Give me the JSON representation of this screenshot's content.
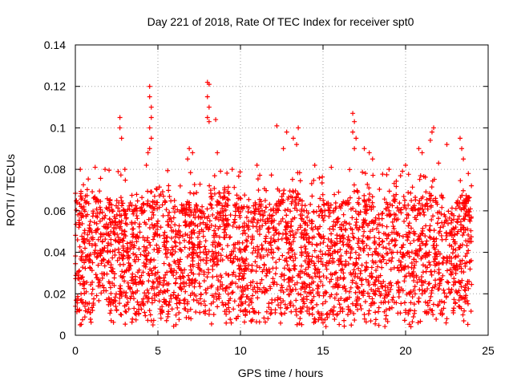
{
  "chart_data": {
    "type": "scatter",
    "title": "Day 221 of 2018, Rate Of TEC Index for receiver spt0",
    "xlabel": "GPS time / hours",
    "ylabel": "ROTI / TECUs",
    "xlim": [
      0,
      25
    ],
    "ylim": [
      0,
      0.14
    ],
    "xticks": [
      0,
      5,
      10,
      15,
      20,
      25
    ],
    "yticks": [
      0,
      0.02,
      0.04,
      0.06,
      0.08,
      0.1,
      0.12,
      0.14
    ],
    "xtick_labels": [
      "0",
      "5",
      "10",
      "15",
      "20",
      "25"
    ],
    "ytick_labels": [
      "0",
      "0.02",
      "0.04",
      "0.06",
      "0.08",
      "0.1",
      "0.12",
      "0.14"
    ],
    "grid": true,
    "marker": "plus",
    "color": "#ff0000",
    "x_data_range": [
      0,
      24
    ],
    "typical_band": [
      0.01,
      0.06
    ],
    "series": [
      {
        "name": "ROTI",
        "points": [
          [
            2.7,
            0.105
          ],
          [
            2.7,
            0.1
          ],
          [
            2.8,
            0.095
          ],
          [
            4.5,
            0.12
          ],
          [
            4.5,
            0.115
          ],
          [
            4.6,
            0.11
          ],
          [
            4.6,
            0.105
          ],
          [
            4.5,
            0.1
          ],
          [
            4.6,
            0.095
          ],
          [
            4.5,
            0.09
          ],
          [
            4.4,
            0.088
          ],
          [
            4.3,
            0.082
          ],
          [
            8.0,
            0.122
          ],
          [
            8.1,
            0.121
          ],
          [
            8.0,
            0.115
          ],
          [
            8.1,
            0.11
          ],
          [
            8.0,
            0.105
          ],
          [
            8.1,
            0.103
          ],
          [
            8.5,
            0.104
          ],
          [
            8.6,
            0.088
          ],
          [
            6.9,
            0.09
          ],
          [
            7.1,
            0.088
          ],
          [
            6.8,
            0.085
          ],
          [
            12.2,
            0.101
          ],
          [
            12.8,
            0.098
          ],
          [
            13.2,
            0.095
          ],
          [
            13.5,
            0.1
          ],
          [
            13.4,
            0.092
          ],
          [
            12.6,
            0.09
          ],
          [
            16.8,
            0.107
          ],
          [
            16.9,
            0.103
          ],
          [
            16.8,
            0.098
          ],
          [
            17.0,
            0.095
          ],
          [
            16.9,
            0.09
          ],
          [
            17.5,
            0.09
          ],
          [
            17.8,
            0.088
          ],
          [
            18.0,
            0.085
          ],
          [
            20.8,
            0.09
          ],
          [
            21.0,
            0.088
          ],
          [
            21.6,
            0.098
          ],
          [
            21.7,
            0.1
          ],
          [
            21.5,
            0.094
          ],
          [
            22.5,
            0.092
          ],
          [
            23.3,
            0.095
          ],
          [
            23.4,
            0.09
          ],
          [
            23.5,
            0.085
          ],
          [
            0.3,
            0.08
          ],
          [
            1.2,
            0.081
          ],
          [
            1.8,
            0.08
          ],
          [
            3.0,
            0.08
          ],
          [
            9.5,
            0.08
          ],
          [
            11.0,
            0.082
          ],
          [
            14.5,
            0.082
          ],
          [
            15.5,
            0.081
          ],
          [
            19.0,
            0.08
          ],
          [
            20.0,
            0.082
          ],
          [
            22.0,
            0.083
          ],
          [
            23.8,
            0.078
          ],
          [
            0.1,
            0.03
          ],
          [
            0.5,
            0.045
          ],
          [
            1.0,
            0.02
          ],
          [
            1.5,
            0.055
          ],
          [
            2.0,
            0.035
          ],
          [
            2.5,
            0.012
          ],
          [
            3.0,
            0.05
          ],
          [
            3.5,
            0.025
          ],
          [
            4.0,
            0.06
          ],
          [
            4.7,
            0.005
          ],
          [
            5.0,
            0.04
          ],
          [
            5.5,
            0.015
          ],
          [
            6.0,
            0.065
          ],
          [
            6.5,
            0.03
          ],
          [
            7.0,
            0.008
          ],
          [
            7.5,
            0.05
          ],
          [
            8.5,
            0.02
          ],
          [
            9.0,
            0.06
          ],
          [
            9.5,
            0.035
          ],
          [
            10.0,
            0.012
          ],
          [
            10.5,
            0.055
          ],
          [
            11.0,
            0.025
          ],
          [
            11.5,
            0.065
          ],
          [
            12.0,
            0.04
          ],
          [
            12.5,
            0.01
          ],
          [
            13.0,
            0.05
          ],
          [
            13.5,
            0.02
          ],
          [
            14.0,
            0.06
          ],
          [
            14.5,
            0.03
          ],
          [
            15.0,
            0.006
          ],
          [
            15.5,
            0.045
          ],
          [
            16.0,
            0.015
          ],
          [
            16.5,
            0.065
          ],
          [
            17.0,
            0.035
          ],
          [
            17.5,
            0.01
          ],
          [
            18.0,
            0.055
          ],
          [
            18.5,
            0.025
          ],
          [
            19.0,
            0.06
          ],
          [
            19.5,
            0.04
          ],
          [
            20.0,
            0.012
          ],
          [
            20.5,
            0.05
          ],
          [
            21.0,
            0.02
          ],
          [
            21.5,
            0.065
          ],
          [
            22.0,
            0.03
          ],
          [
            22.5,
            0.008
          ],
          [
            23.0,
            0.045
          ],
          [
            23.5,
            0.018
          ],
          [
            23.9,
            0.055
          ]
        ]
      }
    ]
  }
}
